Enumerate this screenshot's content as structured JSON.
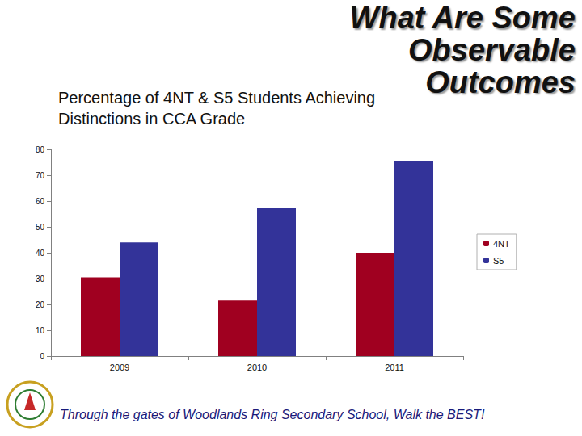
{
  "heading": "What Are Some Observable Outcomes",
  "footer": "Through the gates of Woodlands Ring Secondary School, Walk the BEST!",
  "chart_data": {
    "type": "bar",
    "title": "Percentage of 4NT & S5 Students Achieving Distinctions in CCA Grade",
    "categories": [
      "2009",
      "2010",
      "2011"
    ],
    "series": [
      {
        "name": "4NT",
        "color": "#a00020",
        "values": [
          30.5,
          21.5,
          40
        ]
      },
      {
        "name": "S5",
        "color": "#333399",
        "values": [
          44,
          57.5,
          75.5
        ]
      }
    ],
    "ylim": [
      0,
      80
    ],
    "yticks": [
      0,
      10,
      20,
      30,
      40,
      50,
      60,
      70,
      80
    ],
    "grid": false,
    "legend": "right"
  }
}
